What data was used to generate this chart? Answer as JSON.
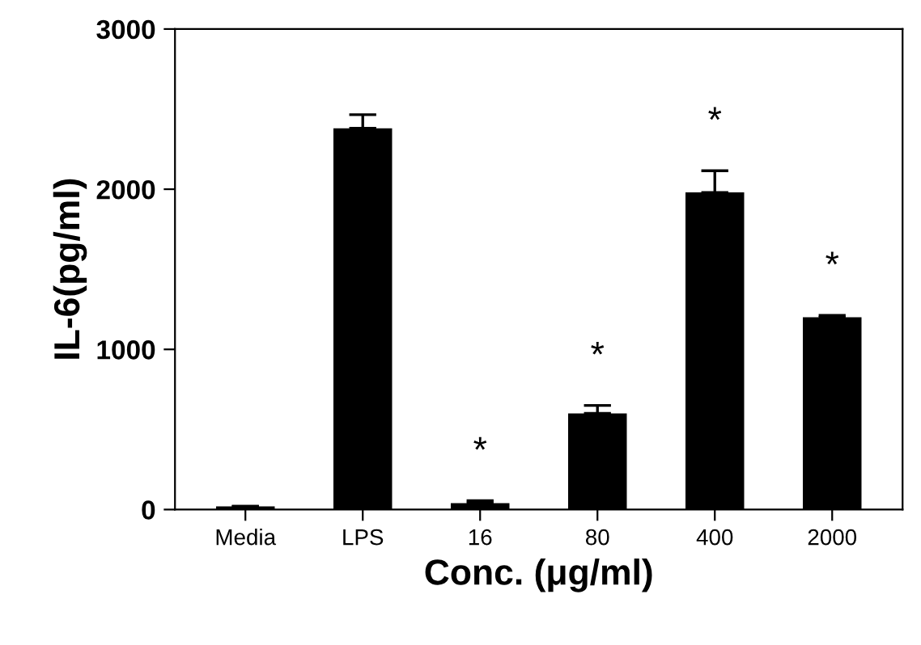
{
  "chart_data": {
    "type": "bar",
    "xlabel": "Conc. (μg/ml)",
    "ylabel": "IL-6(pg/ml)",
    "categories": [
      "Media",
      "LPS",
      "16",
      "80",
      "400",
      "2000"
    ],
    "values": [
      20,
      2380,
      40,
      600,
      1980,
      1200
    ],
    "value_labels": [
      null,
      null,
      "*",
      "*",
      "*",
      "*"
    ],
    "errors": [
      null,
      85,
      15,
      50,
      135,
      12
    ],
    "color": "#000000",
    "ylim": [
      0,
      3000
    ],
    "yticks": [
      0,
      1000,
      2000,
      3000
    ],
    "grid": false
  }
}
